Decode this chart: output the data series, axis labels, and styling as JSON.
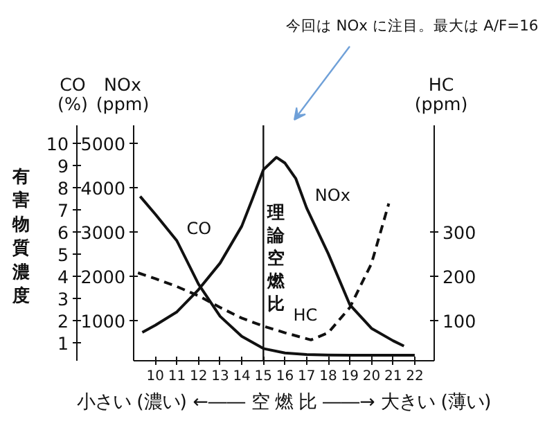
{
  "chart_data": {
    "type": "line",
    "xlabel": "小さい (濃い) ←―― 空 燃 比 ――→ 大きい (薄い)",
    "ylabel": "CO\n(%)",
    "y2label": "NOx\n(ppm)",
    "y3label": "HC\n(ppm)",
    "xlim": [
      9,
      22.9
    ],
    "xticks": [
      10,
      11,
      12,
      13,
      14,
      15,
      16,
      17,
      18,
      19,
      20,
      21,
      22
    ],
    "ylim": [
      0.2,
      10.8
    ],
    "yticks": [
      1,
      2,
      3,
      4,
      5,
      6,
      7,
      8,
      9,
      10
    ],
    "y2lim": [
      100,
      5400
    ],
    "y2ticks": [
      1000,
      2000,
      3000,
      4000,
      5000
    ],
    "y3lim": [
      10,
      540
    ],
    "y3ticks": [
      100,
      200,
      300
    ],
    "line_style": "solid",
    "grid": false,
    "legend": false,
    "series": [
      {
        "name": "CO",
        "color": "#111111",
        "axis": "y",
        "x": [
          9.3,
          10,
          11,
          12,
          13,
          14,
          15,
          16,
          17,
          18,
          19,
          20,
          21,
          22
        ],
        "values": [
          7.6,
          6.8,
          5.6,
          3.65,
          2.2,
          1.3,
          0.75,
          0.55,
          0.48,
          0.46,
          0.45,
          0.45,
          0.45,
          0.45
        ]
      },
      {
        "name": "NOx",
        "color": "#111111",
        "axis": "y2",
        "x": [
          9.4,
          10,
          11,
          12,
          13,
          14,
          14.5,
          15,
          15.6,
          16,
          16.5,
          17,
          18,
          19,
          20,
          21,
          21.5
        ],
        "values": [
          740,
          900,
          1200,
          1700,
          2300,
          3130,
          3750,
          4400,
          4680,
          4550,
          4200,
          3540,
          2510,
          1360,
          830,
          550,
          430
        ]
      },
      {
        "name": "HC",
        "color": "#111111",
        "axis": "y3",
        "line_style": "dashed",
        "x": [
          9.2,
          10,
          11,
          12,
          13,
          14,
          15,
          16,
          17.2,
          18,
          19,
          20,
          20.8
        ],
        "values": [
          208,
          195,
          177,
          156,
          130,
          106,
          88,
          73,
          57,
          73,
          130,
          229,
          364
        ]
      }
    ],
    "ref_lines": [
      {
        "axis": "x",
        "value": 15,
        "label": "理論空燃比",
        "color": "#111111"
      }
    ],
    "annotations": [
      "今回は NOx に注目。最大は A/F=16",
      "有害物質濃度"
    ]
  }
}
